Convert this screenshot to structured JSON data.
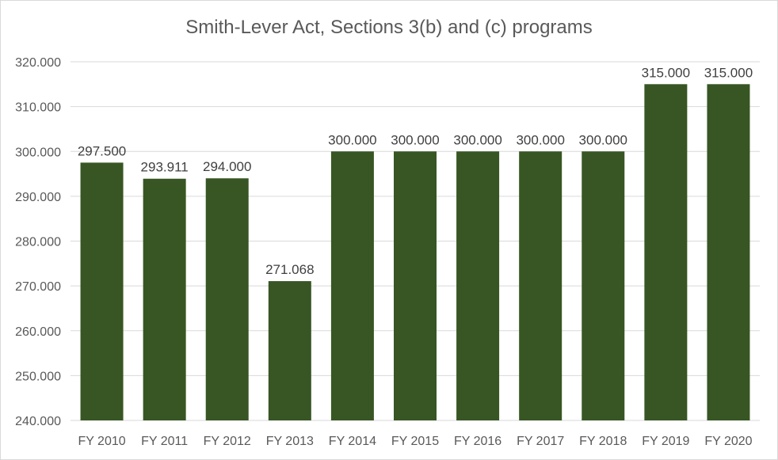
{
  "chart_data": {
    "type": "bar",
    "title": "Smith-Lever Act,  Sections 3(b) and (c) programs",
    "categories": [
      "FY 2010",
      "FY 2011",
      "FY 2012",
      "FY 2013",
      "FY 2014",
      "FY 2015",
      "FY 2016",
      "FY 2017",
      "FY 2018",
      "FY 2019",
      "FY 2020"
    ],
    "values": [
      297.5,
      293.911,
      294.0,
      271.068,
      300.0,
      300.0,
      300.0,
      300.0,
      300.0,
      315.0,
      315.0
    ],
    "data_labels": [
      "297.500",
      "293.911",
      "294.000",
      "271.068",
      "300.000",
      "300.000",
      "300.000",
      "300.000",
      "300.000",
      "315.000",
      "315.000"
    ],
    "y_ticks": [
      "240.000",
      "250.000",
      "260.000",
      "270.000",
      "280.000",
      "290.000",
      "300.000",
      "310.000",
      "320.000"
    ],
    "ylim": [
      240,
      320
    ],
    "xlabel": "",
    "ylabel": "",
    "grid": true,
    "legend": "none",
    "bar_color": "#375623"
  }
}
